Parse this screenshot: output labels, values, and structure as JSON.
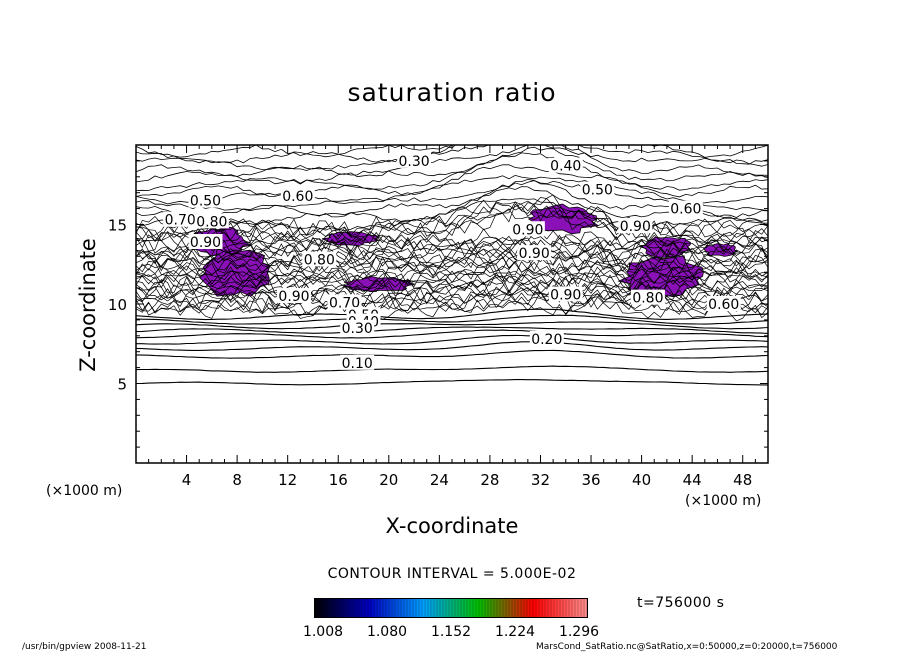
{
  "chart_data": {
    "type": "contour",
    "title": "saturation ratio",
    "xlabel": "X-coordinate",
    "ylabel": "Z-coordinate",
    "x_unit_left": "(×1000 m)",
    "x_unit_right": "(×1000 m)",
    "xlim": [
      0,
      50
    ],
    "ylim": [
      0,
      20
    ],
    "x_ticks": [
      "4",
      "8",
      "12",
      "16",
      "20",
      "24",
      "28",
      "32",
      "36",
      "40",
      "44",
      "48"
    ],
    "y_ticks": [
      "5",
      "10",
      "15"
    ],
    "contour_interval_text": "CONTOUR INTERVAL = 5.000E-02",
    "time_text": "t=756000 s",
    "contour_labels": [
      {
        "text": "0.30",
        "x": 22.0,
        "z": 19.0
      },
      {
        "text": "0.40",
        "x": 34.0,
        "z": 18.7
      },
      {
        "text": "0.50",
        "x": 36.5,
        "z": 17.2
      },
      {
        "text": "0.60",
        "x": 12.8,
        "z": 16.8
      },
      {
        "text": "0.50",
        "x": 5.5,
        "z": 16.5
      },
      {
        "text": "0.60",
        "x": 43.5,
        "z": 16.0
      },
      {
        "text": "0.70",
        "x": 3.5,
        "z": 15.3
      },
      {
        "text": "0.80",
        "x": 6.0,
        "z": 15.2
      },
      {
        "text": "0.90",
        "x": 39.5,
        "z": 14.9
      },
      {
        "text": "0.90",
        "x": 5.5,
        "z": 13.9
      },
      {
        "text": "0.80",
        "x": 14.5,
        "z": 12.8
      },
      {
        "text": "0.90",
        "x": 31.0,
        "z": 14.7
      },
      {
        "text": "0.90",
        "x": 31.5,
        "z": 13.2
      },
      {
        "text": "0.90",
        "x": 12.5,
        "z": 10.5
      },
      {
        "text": "0.70",
        "x": 16.5,
        "z": 10.1
      },
      {
        "text": "0.50",
        "x": 18.0,
        "z": 9.3
      },
      {
        "text": "0.40",
        "x": 18.0,
        "z": 8.9
      },
      {
        "text": "0.30",
        "x": 17.5,
        "z": 8.5
      },
      {
        "text": "0.90",
        "x": 34.0,
        "z": 10.6
      },
      {
        "text": "0.80",
        "x": 40.5,
        "z": 10.4
      },
      {
        "text": "0.60",
        "x": 46.5,
        "z": 10.0
      },
      {
        "text": "0.20",
        "x": 32.5,
        "z": 7.8
      },
      {
        "text": "0.10",
        "x": 17.5,
        "z": 6.3
      }
    ],
    "supersaturated_regions": [
      {
        "x": [
          31.0,
          36.5
        ],
        "z": [
          14.5,
          16.2
        ]
      },
      {
        "x": [
          38.5,
          45.0
        ],
        "z": [
          10.5,
          13.0
        ]
      },
      {
        "x": [
          40.0,
          44.0
        ],
        "z": [
          13.0,
          14.2
        ]
      },
      {
        "x": [
          45.0,
          47.5
        ],
        "z": [
          13.0,
          13.8
        ]
      },
      {
        "x": [
          4.0,
          9.0
        ],
        "z": [
          13.0,
          14.8
        ]
      },
      {
        "x": [
          5.0,
          10.5
        ],
        "z": [
          10.5,
          13.5
        ]
      },
      {
        "x": [
          15.0,
          19.0
        ],
        "z": [
          13.7,
          14.5
        ]
      },
      {
        "x": [
          16.5,
          22.0
        ],
        "z": [
          10.8,
          11.7
        ]
      }
    ],
    "colorbar": {
      "labels": [
        "1.008",
        "1.080",
        "1.152",
        "1.224",
        "1.296"
      ],
      "colors": [
        "#000000",
        "#0000c0",
        "#00a0ff",
        "#00c000",
        "#ff0000",
        "#ff9090"
      ]
    }
  },
  "footer": {
    "left": "/usr/bin/gpview   2008-11-21",
    "right": "MarsCond_SatRatio.nc@SatRatio,x=0:50000,z=0:20000,t=756000"
  }
}
